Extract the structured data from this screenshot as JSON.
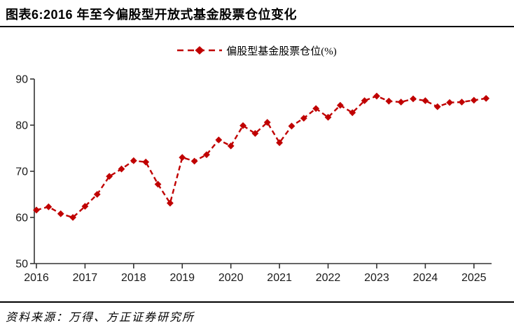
{
  "header": {
    "title": "图表6:2016 年至今偏股型开放式基金股票仓位变化"
  },
  "footer": {
    "source": "资料来源：万得、方正证券研究所"
  },
  "chart_data": {
    "type": "line",
    "title": "图表6:2016 年至今偏股型开放式基金股票仓位变化",
    "legend_label": "偏股型基金股票仓位(%)",
    "legend_position": "top-center",
    "line_color": "#C00000",
    "line_style": "dashed",
    "marker": "diamond",
    "grid": false,
    "ylim": [
      50,
      90
    ],
    "yticks": [
      50,
      60,
      70,
      80,
      90
    ],
    "xticks": [
      "2016",
      "2017",
      "2018",
      "2019",
      "2020",
      "2021",
      "2022",
      "2023",
      "2024",
      "2025"
    ],
    "x": [
      "2016Q1",
      "2016Q2",
      "2016Q3",
      "2016Q4",
      "2017Q1",
      "2017Q2",
      "2017Q3",
      "2017Q4",
      "2018Q1",
      "2018Q2",
      "2018Q3",
      "2018Q4",
      "2019Q1",
      "2019Q2",
      "2019Q3",
      "2019Q4",
      "2020Q1",
      "2020Q2",
      "2020Q3",
      "2020Q4",
      "2021Q1",
      "2021Q2",
      "2021Q3",
      "2021Q4",
      "2022Q1",
      "2022Q2",
      "2022Q3",
      "2022Q4",
      "2023Q1",
      "2023Q2",
      "2023Q3",
      "2023Q4",
      "2024Q1",
      "2024Q2",
      "2024Q3",
      "2024Q4",
      "2025Q1",
      "2025Q2"
    ],
    "values": [
      61.6,
      62.3,
      60.8,
      60.0,
      62.4,
      65.0,
      68.9,
      70.5,
      72.3,
      72.0,
      67.2,
      63.1,
      73.0,
      72.2,
      73.6,
      76.8,
      75.5,
      79.9,
      78.2,
      80.6,
      76.2,
      79.8,
      81.5,
      83.6,
      81.7,
      84.3,
      82.7,
      85.3,
      86.3,
      85.2,
      85.0,
      85.7,
      85.3,
      84.0,
      84.9,
      85.0,
      85.4,
      85.8
    ]
  }
}
